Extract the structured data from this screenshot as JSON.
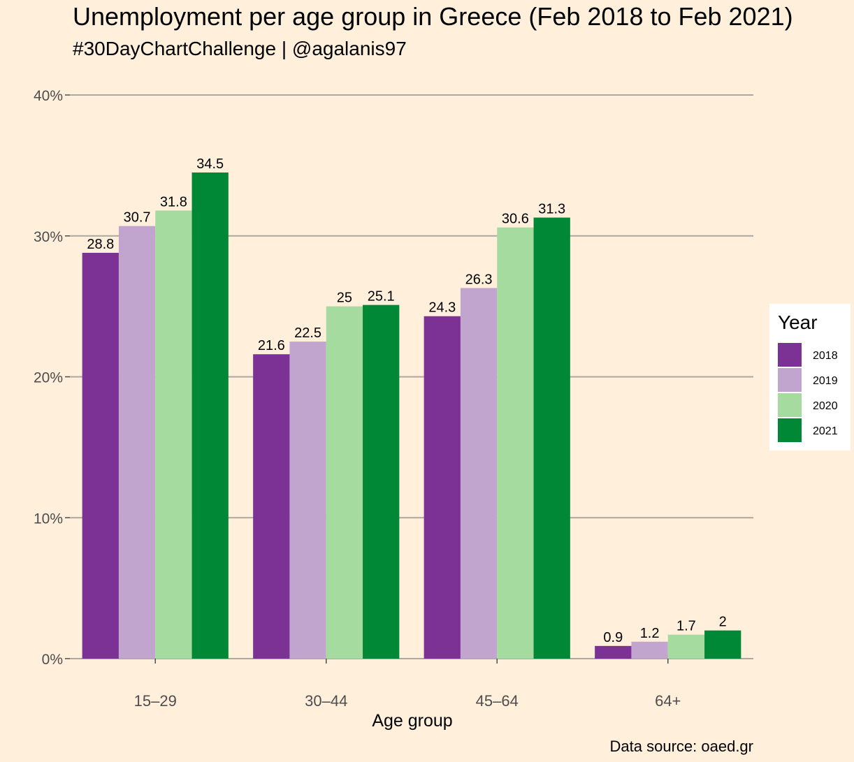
{
  "chart_data": {
    "type": "bar",
    "title": "Unemployment per age group in Greece (Feb 2018 to Feb 2021)",
    "subtitle": "#30DayChartChallenge | @agalanis97",
    "xlabel": "Age group",
    "ylabel": "",
    "caption": "Data source: oaed.gr",
    "categories": [
      "15–29",
      "30–44",
      "45–64",
      "64+"
    ],
    "ylim": [
      0,
      40
    ],
    "yticks": [
      0,
      10,
      20,
      30,
      40
    ],
    "ytick_labels": [
      "0%",
      "10%",
      "20%",
      "30%",
      "40%"
    ],
    "grid": "horizontal major",
    "legend": {
      "title": "Year",
      "position": "right"
    },
    "series": [
      {
        "name": "2018",
        "color": "#7B3294",
        "values": [
          28.8,
          21.6,
          24.3,
          0.9
        ],
        "labels": [
          "28.8",
          "21.6",
          "24.3",
          "0.9"
        ]
      },
      {
        "name": "2019",
        "color": "#C2A5CF",
        "values": [
          30.7,
          22.5,
          26.3,
          1.2
        ],
        "labels": [
          "30.7",
          "22.5",
          "26.3",
          "1.2"
        ]
      },
      {
        "name": "2020",
        "color": "#A6DBA0",
        "values": [
          31.8,
          25.0,
          30.6,
          1.7
        ],
        "labels": [
          "31.8",
          "25",
          "30.6",
          "1.7"
        ]
      },
      {
        "name": "2021",
        "color": "#008837",
        "values": [
          34.5,
          25.1,
          31.3,
          2.0
        ],
        "labels": [
          "34.5",
          "25.1",
          "31.3",
          "2"
        ]
      }
    ]
  }
}
